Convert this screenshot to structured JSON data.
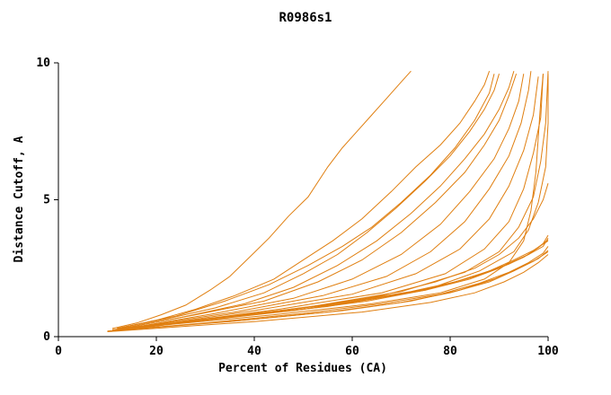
{
  "chart_data": {
    "type": "line",
    "title": "R0986s1",
    "xlabel": "Percent of Residues (CA)",
    "ylabel": "Distance Cutoff, A",
    "xlim": [
      0,
      100
    ],
    "ylim": [
      0,
      10
    ],
    "x_ticks": [
      0,
      20,
      40,
      60,
      80,
      100
    ],
    "y_ticks": [
      0,
      5,
      10
    ],
    "grid": false,
    "legend": "none",
    "line_color": "#e07f10",
    "axis_color": "#000000",
    "series": [
      {
        "points": [
          [
            11,
            0.3
          ],
          [
            16,
            0.5
          ],
          [
            21,
            0.8
          ],
          [
            26,
            1.15
          ],
          [
            31,
            1.7
          ],
          [
            35,
            2.2
          ],
          [
            39,
            2.9
          ],
          [
            43,
            3.6
          ],
          [
            47,
            4.4
          ],
          [
            51,
            5.1
          ],
          [
            55,
            6.2
          ],
          [
            58,
            6.9
          ],
          [
            61,
            7.5
          ],
          [
            64,
            8.1
          ],
          [
            67,
            8.7
          ],
          [
            70,
            9.3
          ],
          [
            72,
            9.7
          ]
        ]
      },
      {
        "points": [
          [
            12,
            0.3
          ],
          [
            20,
            0.6
          ],
          [
            28,
            1.0
          ],
          [
            36,
            1.5
          ],
          [
            44,
            2.1
          ],
          [
            50,
            2.8
          ],
          [
            56,
            3.5
          ],
          [
            62,
            4.3
          ],
          [
            68,
            5.3
          ],
          [
            73,
            6.2
          ],
          [
            78,
            7.0
          ],
          [
            82,
            7.8
          ],
          [
            85,
            8.6
          ],
          [
            87,
            9.2
          ],
          [
            88,
            9.7
          ]
        ]
      },
      {
        "points": [
          [
            12,
            0.3
          ],
          [
            22,
            0.65
          ],
          [
            32,
            1.05
          ],
          [
            42,
            1.6
          ],
          [
            50,
            2.3
          ],
          [
            57,
            3.0
          ],
          [
            63,
            3.8
          ],
          [
            69,
            4.7
          ],
          [
            75,
            5.7
          ],
          [
            80,
            6.6
          ],
          [
            84,
            7.5
          ],
          [
            87,
            8.3
          ],
          [
            89,
            9.0
          ],
          [
            90,
            9.6
          ]
        ]
      },
      {
        "points": [
          [
            12,
            0.3
          ],
          [
            24,
            0.75
          ],
          [
            34,
            1.3
          ],
          [
            43,
            1.9
          ],
          [
            51,
            2.6
          ],
          [
            58,
            3.3
          ],
          [
            64,
            4.0
          ],
          [
            70,
            4.9
          ],
          [
            76,
            5.9
          ],
          [
            81,
            6.9
          ],
          [
            85,
            7.9
          ],
          [
            88,
            8.9
          ],
          [
            89,
            9.6
          ]
        ]
      },
      {
        "points": [
          [
            13,
            0.3
          ],
          [
            25,
            0.7
          ],
          [
            38,
            1.2
          ],
          [
            48,
            1.8
          ],
          [
            57,
            2.6
          ],
          [
            65,
            3.5
          ],
          [
            72,
            4.5
          ],
          [
            78,
            5.5
          ],
          [
            83,
            6.5
          ],
          [
            87,
            7.4
          ],
          [
            90,
            8.3
          ],
          [
            92,
            9.1
          ],
          [
            93,
            9.7
          ]
        ]
      },
      {
        "points": [
          [
            13,
            0.3
          ],
          [
            28,
            0.8
          ],
          [
            42,
            1.3
          ],
          [
            53,
            2.0
          ],
          [
            62,
            2.8
          ],
          [
            70,
            3.8
          ],
          [
            77,
            4.9
          ],
          [
            83,
            6.0
          ],
          [
            87,
            7.0
          ],
          [
            90,
            7.9
          ],
          [
            92,
            8.8
          ],
          [
            93.5,
            9.6
          ]
        ]
      },
      {
        "points": [
          [
            14,
            0.3
          ],
          [
            32,
            0.85
          ],
          [
            48,
            1.4
          ],
          [
            60,
            2.1
          ],
          [
            70,
            3.0
          ],
          [
            78,
            4.1
          ],
          [
            84,
            5.3
          ],
          [
            89,
            6.5
          ],
          [
            92,
            7.6
          ],
          [
            94,
            8.6
          ],
          [
            95,
            9.6
          ]
        ]
      },
      {
        "points": [
          [
            14,
            0.3
          ],
          [
            36,
            0.9
          ],
          [
            54,
            1.5
          ],
          [
            67,
            2.2
          ],
          [
            76,
            3.1
          ],
          [
            83,
            4.2
          ],
          [
            88,
            5.4
          ],
          [
            92,
            6.6
          ],
          [
            94.5,
            7.8
          ],
          [
            96,
            9.0
          ],
          [
            96.5,
            9.7
          ]
        ]
      },
      {
        "points": [
          [
            15,
            0.3
          ],
          [
            40,
            0.95
          ],
          [
            60,
            1.55
          ],
          [
            73,
            2.3
          ],
          [
            82,
            3.2
          ],
          [
            88,
            4.3
          ],
          [
            92,
            5.5
          ],
          [
            95,
            6.8
          ],
          [
            97,
            8.1
          ],
          [
            98,
            9.5
          ]
        ]
      },
      {
        "points": [
          [
            14,
            0.3
          ],
          [
            44,
            0.8
          ],
          [
            64,
            1.2
          ],
          [
            78,
            1.6
          ],
          [
            87,
            2.1
          ],
          [
            92,
            2.7
          ],
          [
            95,
            3.5
          ],
          [
            96.5,
            4.6
          ],
          [
            97.5,
            6.0
          ],
          [
            98,
            7.3
          ],
          [
            98.5,
            8.6
          ],
          [
            99,
            9.6
          ]
        ]
      },
      {
        "points": [
          [
            15,
            0.3
          ],
          [
            45,
            1.0
          ],
          [
            66,
            1.6
          ],
          [
            79,
            2.3
          ],
          [
            87,
            3.2
          ],
          [
            92,
            4.2
          ],
          [
            95,
            5.4
          ],
          [
            97,
            6.7
          ],
          [
            98.5,
            8.0
          ],
          [
            99,
            9.6
          ]
        ]
      },
      {
        "points": [
          [
            16,
            0.3
          ],
          [
            50,
            1.05
          ],
          [
            70,
            1.65
          ],
          [
            83,
            2.35
          ],
          [
            90,
            3.1
          ],
          [
            94,
            4.0
          ],
          [
            97,
            5.1
          ],
          [
            98.5,
            6.4
          ],
          [
            99.5,
            7.8
          ],
          [
            100,
            9.7
          ]
        ]
      },
      {
        "points": [
          [
            16,
            0.35
          ],
          [
            55,
            1.1
          ],
          [
            75,
            1.7
          ],
          [
            86,
            2.4
          ],
          [
            93,
            3.1
          ],
          [
            96,
            3.9
          ],
          [
            98,
            4.9
          ],
          [
            99.5,
            6.2
          ],
          [
            100,
            7.8
          ],
          [
            100,
            9.6
          ]
        ]
      },
      {
        "points": [
          [
            13,
            0.3
          ],
          [
            34,
            0.7
          ],
          [
            52,
            1.1
          ],
          [
            66,
            1.5
          ],
          [
            77,
            2.0
          ],
          [
            85,
            2.5
          ],
          [
            90,
            3.0
          ],
          [
            94,
            3.6
          ],
          [
            97,
            4.3
          ],
          [
            99,
            5.0
          ],
          [
            100,
            5.6
          ]
        ]
      },
      {
        "points": [
          [
            11,
            0.25
          ],
          [
            25,
            0.55
          ],
          [
            40,
            0.85
          ],
          [
            55,
            1.15
          ],
          [
            68,
            1.5
          ],
          [
            78,
            1.85
          ],
          [
            86,
            2.25
          ],
          [
            92,
            2.65
          ],
          [
            96,
            3.0
          ],
          [
            99,
            3.4
          ],
          [
            100,
            3.7
          ]
        ]
      },
      {
        "points": [
          [
            11,
            0.25
          ],
          [
            28,
            0.6
          ],
          [
            45,
            0.95
          ],
          [
            60,
            1.3
          ],
          [
            72,
            1.65
          ],
          [
            81,
            2.0
          ],
          [
            88,
            2.4
          ],
          [
            93,
            2.8
          ],
          [
            97,
            3.15
          ],
          [
            100,
            3.5
          ]
        ]
      },
      {
        "points": [
          [
            12,
            0.25
          ],
          [
            30,
            0.6
          ],
          [
            48,
            0.95
          ],
          [
            63,
            1.3
          ],
          [
            75,
            1.7
          ],
          [
            84,
            2.1
          ],
          [
            90,
            2.5
          ],
          [
            95,
            2.9
          ],
          [
            98,
            3.25
          ],
          [
            100,
            3.55
          ]
        ]
      },
      {
        "points": [
          [
            12,
            0.3
          ],
          [
            32,
            0.65
          ],
          [
            50,
            1.0
          ],
          [
            65,
            1.4
          ],
          [
            77,
            1.8
          ],
          [
            85,
            2.2
          ],
          [
            91,
            2.6
          ],
          [
            96,
            3.0
          ],
          [
            99,
            3.3
          ],
          [
            100,
            3.6
          ]
        ]
      },
      {
        "points": [
          [
            10,
            0.2
          ],
          [
            30,
            0.5
          ],
          [
            50,
            0.85
          ],
          [
            66,
            1.2
          ],
          [
            78,
            1.55
          ],
          [
            86,
            1.95
          ],
          [
            92,
            2.35
          ],
          [
            96,
            2.7
          ],
          [
            99,
            3.05
          ],
          [
            100,
            3.3
          ]
        ]
      },
      {
        "points": [
          [
            10,
            0.2
          ],
          [
            35,
            0.55
          ],
          [
            55,
            0.9
          ],
          [
            70,
            1.25
          ],
          [
            80,
            1.6
          ],
          [
            88,
            2.0
          ],
          [
            93,
            2.4
          ],
          [
            97,
            2.75
          ],
          [
            100,
            3.1
          ]
        ]
      },
      {
        "points": [
          [
            11,
            0.22
          ],
          [
            38,
            0.6
          ],
          [
            58,
            0.95
          ],
          [
            72,
            1.3
          ],
          [
            82,
            1.7
          ],
          [
            89,
            2.1
          ],
          [
            94,
            2.5
          ],
          [
            98,
            2.85
          ],
          [
            100,
            3.15
          ]
        ]
      },
      {
        "points": [
          [
            10,
            0.18
          ],
          [
            40,
            0.55
          ],
          [
            62,
            0.9
          ],
          [
            76,
            1.25
          ],
          [
            85,
            1.6
          ],
          [
            91,
            2.0
          ],
          [
            95,
            2.35
          ],
          [
            98,
            2.7
          ],
          [
            100,
            3.0
          ]
        ]
      }
    ]
  }
}
